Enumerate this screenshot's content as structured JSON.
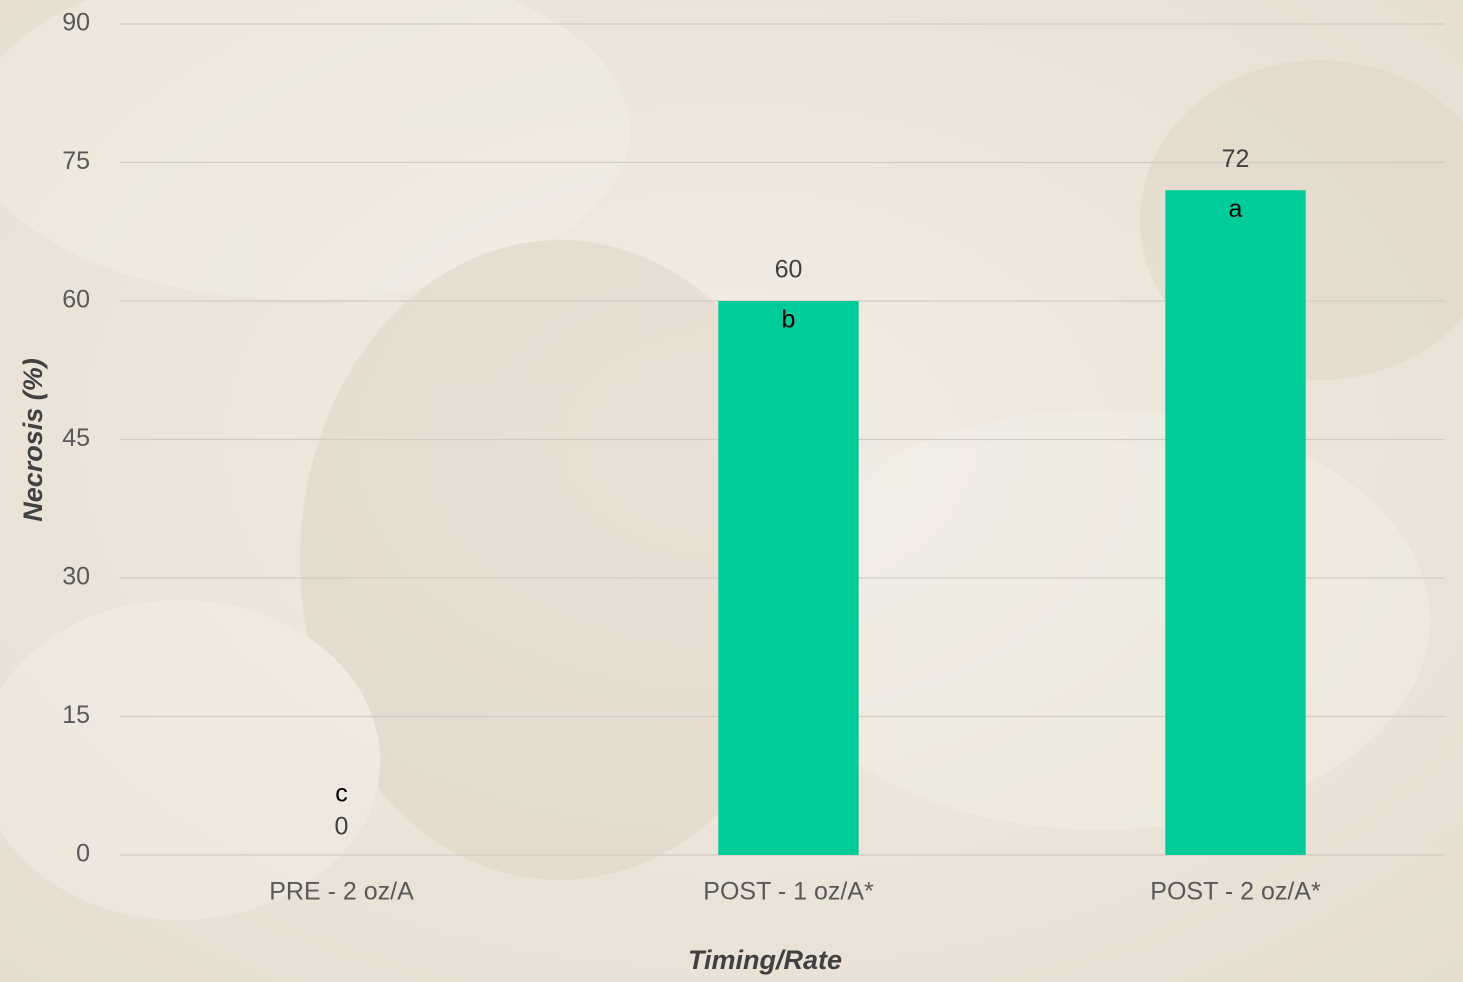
{
  "chart_data": {
    "type": "bar",
    "x_label": "Timing/Rate",
    "y_label": "Necrosis  (%)",
    "categories": [
      "PRE - 2 oz/A",
      "POST - 1 oz/A*",
      "POST - 2 oz/A*"
    ],
    "values": [
      0,
      60,
      72
    ],
    "letters": [
      "c",
      "b",
      "a"
    ],
    "color": "#00cc99",
    "ylim": [
      0,
      90
    ],
    "yticks": [
      0,
      15,
      30,
      45,
      60,
      75,
      90
    ],
    "grid": true
  }
}
